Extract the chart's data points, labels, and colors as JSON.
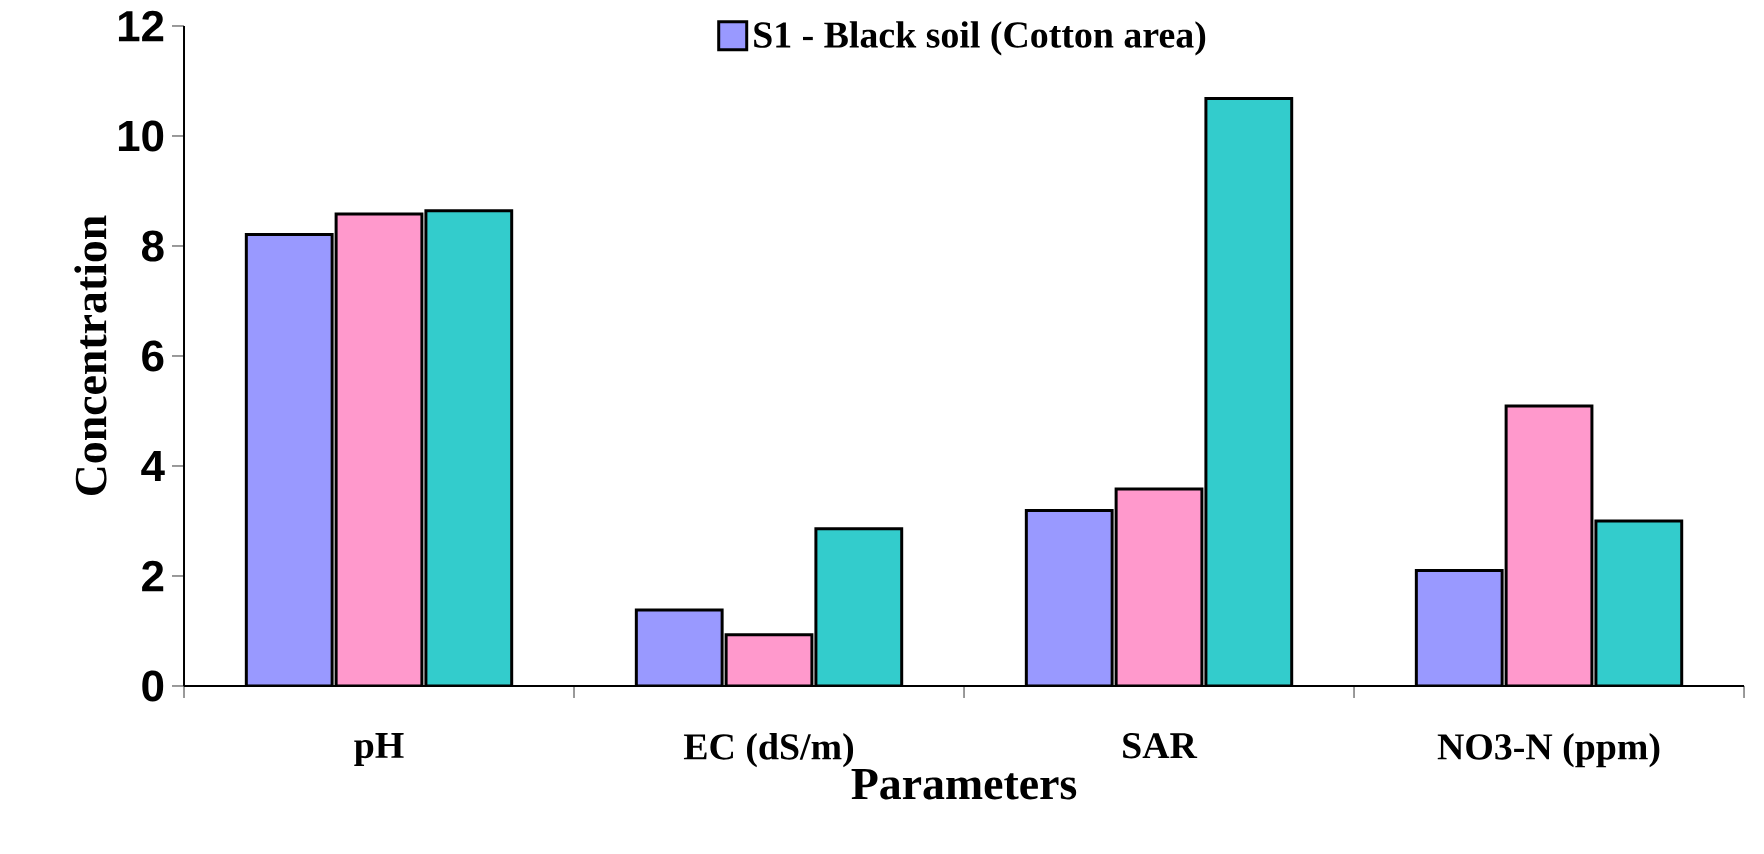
{
  "chart_data": {
    "type": "bar",
    "xlabel": "Parameters",
    "ylabel": "Concentration",
    "categories": [
      "pH",
      "EC (dS/m)",
      "SAR",
      "NO3-N (ppm)"
    ],
    "series": [
      {
        "name": "S1 -  Black soil (Cotton area)",
        "color": "#9999ff",
        "values": [
          8.21,
          1.38,
          3.19,
          2.1
        ]
      },
      {
        "color": "#ff99cc",
        "values": [
          8.58,
          0.93,
          3.58,
          5.09
        ]
      },
      {
        "color": "#33cccc",
        "values": [
          8.64,
          2.86,
          10.68,
          3.0
        ]
      }
    ],
    "ylim": [
      0,
      12
    ],
    "yticks": [
      0,
      2,
      4,
      6,
      8,
      10,
      12
    ],
    "grid": false,
    "legend": "top"
  }
}
